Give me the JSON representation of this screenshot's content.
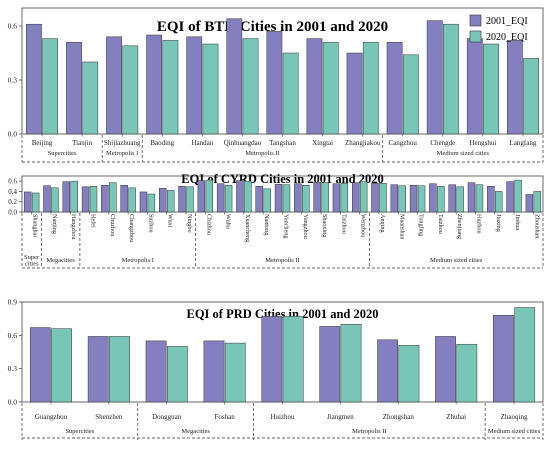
{
  "colors": {
    "y2001": "#8480bf",
    "y2020": "#79c6b8",
    "stroke": "#333333"
  },
  "legend": [
    "2001_EQI",
    "2020_EQI"
  ],
  "chart_data": [
    {
      "type": "bar",
      "title": "EQI of BTH Cities in 2001 and 2020",
      "ylim": [
        0,
        0.7
      ],
      "yticks": [
        "0.0",
        "0.3",
        "0.6"
      ],
      "legend_position": "top-right",
      "categories": [
        "Beijing",
        "Tianjin",
        "Shijiazhuang",
        "Baoding",
        "Handan",
        "Qinhuangdao",
        "Tangshan",
        "Xingtai",
        "Zhangjiakou",
        "Cangzhou",
        "Chengde",
        "Hengshui",
        "Langfang"
      ],
      "series": [
        {
          "name": "2001_EQI",
          "values": [
            0.61,
            0.51,
            0.54,
            0.55,
            0.54,
            0.64,
            0.57,
            0.53,
            0.45,
            0.51,
            0.63,
            0.53,
            0.52
          ]
        },
        {
          "name": "2020_EQI",
          "values": [
            0.53,
            0.4,
            0.49,
            0.52,
            0.5,
            0.53,
            0.45,
            0.51,
            0.51,
            0.44,
            0.61,
            0.5,
            0.42
          ]
        }
      ],
      "groups": [
        {
          "label": "Supercities",
          "count": 2
        },
        {
          "label": "Metropolis I",
          "count": 1
        },
        {
          "label": "Metropolis II",
          "count": 6
        },
        {
          "label": "Medium sized cities",
          "count": 4
        }
      ]
    },
    {
      "type": "bar",
      "title": "EQI of  CYRD Cities in 2001 and 2020",
      "ylim": [
        0,
        0.7
      ],
      "yticks": [
        "0.0",
        "0.2",
        "0.4",
        "0.6"
      ],
      "categories": [
        "Shanghai",
        "Nanjing",
        "Hangzhou",
        "Hefei",
        "Chuzhou",
        "Changzhou",
        "Suzhou",
        "Wuxi",
        "Ningbo",
        "Chizhou",
        "Wuhu",
        "Xuancheng",
        "Nantong",
        "Yancheng",
        "Yangzhou",
        "Shaoxing",
        "Taizhou",
        "Wenzhou",
        "Anqing",
        "Maanshan",
        "Tongling",
        "Taizhou",
        "Zhenjiang",
        "Huzhou",
        "Jiaxing",
        "Jinhua",
        "Zhoushan"
      ],
      "series": [
        {
          "name": "2001_EQI",
          "values": [
            0.39,
            0.51,
            0.59,
            0.49,
            0.52,
            0.52,
            0.39,
            0.46,
            0.5,
            0.61,
            0.55,
            0.61,
            0.5,
            0.54,
            0.55,
            0.58,
            0.55,
            0.57,
            0.56,
            0.53,
            0.52,
            0.55,
            0.53,
            0.57,
            0.5,
            0.59,
            0.34
          ]
        },
        {
          "name": "2020_EQI",
          "values": [
            0.37,
            0.47,
            0.6,
            0.5,
            0.57,
            0.47,
            0.35,
            0.42,
            0.49,
            0.62,
            0.52,
            0.6,
            0.45,
            0.53,
            0.52,
            0.57,
            0.56,
            0.59,
            0.56,
            0.51,
            0.51,
            0.5,
            0.49,
            0.53,
            0.4,
            0.62,
            0.4
          ]
        }
      ],
      "groups": [
        {
          "label": "Super cities",
          "count": 1
        },
        {
          "label": "Megacities",
          "count": 2
        },
        {
          "label": "Metropolis I",
          "count": 6
        },
        {
          "label": "Metropolis II",
          "count": 9
        },
        {
          "label": "Medium sized cities",
          "count": 9
        }
      ]
    },
    {
      "type": "bar",
      "title": "EQI of PRD Cities in 2001 and 2020",
      "ylim": [
        0,
        0.9
      ],
      "yticks": [
        "0.0",
        "0.3",
        "0.6",
        "0.9"
      ],
      "categories": [
        "Guangzhou",
        "Shenzhen",
        "Dongguan",
        "Foshan",
        "Huizhou",
        "Jiangmen",
        "Zhongshan",
        "Zhuhai",
        "Zhaoqing"
      ],
      "series": [
        {
          "name": "2001_EQI",
          "values": [
            0.67,
            0.59,
            0.55,
            0.55,
            0.77,
            0.68,
            0.56,
            0.59,
            0.78
          ]
        },
        {
          "name": "2020_EQI",
          "values": [
            0.66,
            0.59,
            0.5,
            0.53,
            0.77,
            0.7,
            0.51,
            0.52,
            0.85
          ]
        }
      ],
      "groups": [
        {
          "label": "Supercities",
          "count": 2
        },
        {
          "label": "Megacities",
          "count": 2
        },
        {
          "label": "Metropolis II",
          "count": 4
        },
        {
          "label": "Medium sized cities",
          "count": 1
        }
      ]
    }
  ]
}
